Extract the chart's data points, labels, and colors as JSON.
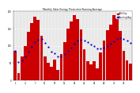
{
  "title": "Monthly Solar Energy Production Running Average",
  "bar_color": "#cc0000",
  "avg_color": "#0000cc",
  "background": "#ffffff",
  "plot_bg": "#e8e8e8",
  "grid_color": "#ffffff",
  "values": [
    85,
    20,
    70,
    100,
    140,
    165,
    185,
    175,
    130,
    70,
    50,
    40,
    60,
    30,
    75,
    110,
    150,
    170,
    190,
    178,
    148,
    90,
    55,
    45,
    55,
    35,
    80,
    115,
    145,
    162,
    188,
    180,
    142,
    85,
    58,
    48
  ],
  "running_avg": [
    85,
    53,
    58,
    69,
    83,
    97,
    111,
    118,
    120,
    109,
    96,
    83,
    78,
    70,
    70,
    76,
    84,
    94,
    106,
    114,
    118,
    116,
    111,
    104,
    99,
    93,
    91,
    94,
    99,
    105,
    113,
    119,
    121,
    119,
    115,
    109
  ],
  "ylim": [
    0,
    200
  ],
  "n_bars": 36,
  "ytick_vals": [
    0,
    50,
    100,
    150,
    200
  ],
  "legend_labels": [
    "kWh/Day",
    "Running Avg"
  ],
  "legend_colors": [
    "#cc0000",
    "#0000cc"
  ]
}
